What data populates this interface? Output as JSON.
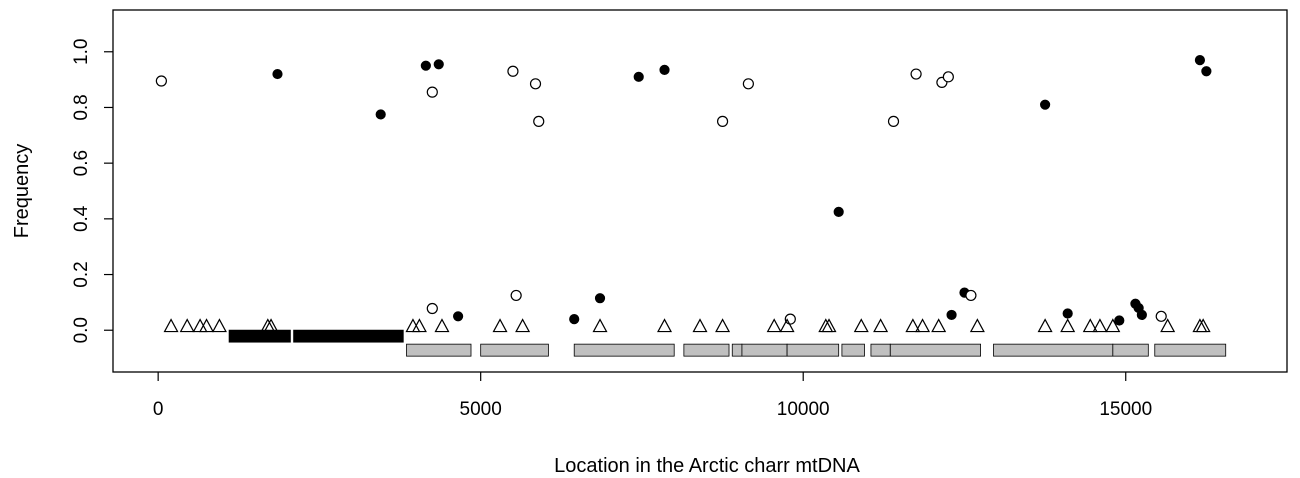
{
  "chart_data": {
    "type": "scatter",
    "title": "",
    "xlabel": "Location in the Arctic charr mtDNA",
    "ylabel": "Frequency",
    "xlim": [
      -700,
      17500
    ],
    "ylim": [
      -0.15,
      1.15
    ],
    "x_ticks": [
      0,
      5000,
      10000,
      15000
    ],
    "x_tick_labels": [
      "0",
      "5000",
      "10000",
      "15000"
    ],
    "y_ticks": [
      0.0,
      0.2,
      0.4,
      0.6,
      0.8,
      1.0
    ],
    "y_tick_labels": [
      "0.0",
      "0.2",
      "0.4",
      "0.6",
      "0.8",
      "1.0"
    ],
    "grid": false,
    "legend": "none",
    "colors": {
      "filled": "#000000",
      "open_edge": "#000000",
      "gene_box": "#c0c0c0",
      "rrna_box": "#000000"
    },
    "series": [
      {
        "marker": "filled-circle",
        "points": [
          [
            1850,
            0.92
          ],
          [
            3450,
            0.775
          ],
          [
            4150,
            0.95
          ],
          [
            4350,
            0.955
          ],
          [
            4650,
            0.05
          ],
          [
            6450,
            0.04
          ],
          [
            6850,
            0.115
          ],
          [
            7450,
            0.91
          ],
          [
            7850,
            0.935
          ],
          [
            10550,
            0.425
          ],
          [
            12300,
            0.055
          ],
          [
            12500,
            0.135
          ],
          [
            13750,
            0.81
          ],
          [
            14100,
            0.06
          ],
          [
            14900,
            0.035
          ],
          [
            15150,
            0.095
          ],
          [
            15200,
            0.08
          ],
          [
            15250,
            0.055
          ],
          [
            16150,
            0.97
          ],
          [
            16250,
            0.93
          ]
        ]
      },
      {
        "marker": "open-circle",
        "points": [
          [
            50,
            0.895
          ],
          [
            4250,
            0.855
          ],
          [
            4250,
            0.078
          ],
          [
            5500,
            0.93
          ],
          [
            5550,
            0.125
          ],
          [
            5850,
            0.885
          ],
          [
            5900,
            0.75
          ],
          [
            8750,
            0.75
          ],
          [
            9150,
            0.885
          ],
          [
            9800,
            0.04
          ],
          [
            11400,
            0.75
          ],
          [
            11750,
            0.92
          ],
          [
            12150,
            0.89
          ],
          [
            12250,
            0.91
          ],
          [
            12600,
            0.125
          ],
          [
            15550,
            0.05
          ]
        ]
      },
      {
        "marker": "open-triangle",
        "points": [
          [
            200,
            0.015
          ],
          [
            450,
            0.015
          ],
          [
            650,
            0.015
          ],
          [
            750,
            0.015
          ],
          [
            950,
            0.015
          ],
          [
            1700,
            0.015
          ],
          [
            1750,
            0.015
          ],
          [
            3950,
            0.015
          ],
          [
            4050,
            0.015
          ],
          [
            4400,
            0.015
          ],
          [
            5300,
            0.015
          ],
          [
            5650,
            0.015
          ],
          [
            6850,
            0.015
          ],
          [
            7850,
            0.015
          ],
          [
            8400,
            0.015
          ],
          [
            8750,
            0.015
          ],
          [
            9550,
            0.015
          ],
          [
            9750,
            0.015
          ],
          [
            10350,
            0.015
          ],
          [
            10400,
            0.015
          ],
          [
            10900,
            0.015
          ],
          [
            11200,
            0.015
          ],
          [
            11700,
            0.015
          ],
          [
            11850,
            0.015
          ],
          [
            12100,
            0.015
          ],
          [
            12700,
            0.015
          ],
          [
            13750,
            0.015
          ],
          [
            14100,
            0.015
          ],
          [
            14450,
            0.015
          ],
          [
            14600,
            0.015
          ],
          [
            14800,
            0.015
          ],
          [
            15650,
            0.015
          ],
          [
            16150,
            0.015
          ],
          [
            16200,
            0.015
          ]
        ]
      }
    ],
    "rrna_regions": [
      [
        1100,
        2050
      ],
      [
        2100,
        3800
      ]
    ],
    "gene_regions": [
      [
        3850,
        4850
      ],
      [
        5000,
        6050
      ],
      [
        6450,
        8000
      ],
      [
        8150,
        8850
      ],
      [
        8900,
        9050
      ],
      [
        9050,
        9750
      ],
      [
        9750,
        10550
      ],
      [
        10600,
        10950
      ],
      [
        11050,
        11350
      ],
      [
        11350,
        12750
      ],
      [
        12950,
        14800
      ],
      [
        14800,
        15350
      ],
      [
        15450,
        16550
      ]
    ]
  }
}
